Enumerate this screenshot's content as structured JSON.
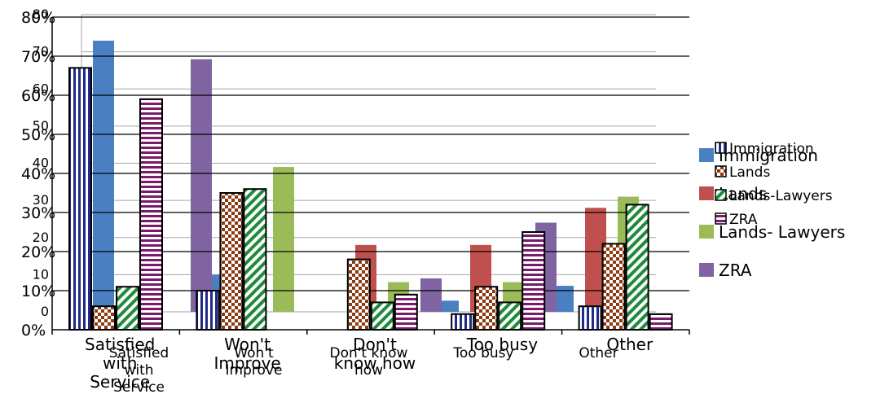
{
  "chart_data": {
    "type": "bar",
    "description": "Two overlapping clustered bar charts with the same categories and series.",
    "categories": [
      "Satisfied with Service",
      "Won't Improve",
      "Don't know how",
      "Too busy",
      "Other"
    ],
    "front": {
      "y_tick_labels": [
        "0%",
        "10%",
        "20%",
        "30%",
        "40%",
        "50%",
        "60%",
        "70%",
        "80%"
      ],
      "ylim": [
        0,
        80
      ],
      "category_labels": [
        [
          "Satisfied",
          "with",
          "Service"
        ],
        [
          "Won't",
          "Improve"
        ],
        [
          "Don't",
          "know how"
        ],
        [
          "Too busy"
        ],
        [
          "Other"
        ]
      ],
      "series": [
        {
          "name": "Immigration",
          "values": [
            67,
            10,
            0,
            4,
            6
          ],
          "color": "#1f2a8a",
          "pattern": "vertical-stripes"
        },
        {
          "name": "Lands",
          "values": [
            6,
            35,
            18,
            11,
            22
          ],
          "color": "#8b3a12",
          "pattern": "checker"
        },
        {
          "name": "Lands-Lawyers",
          "values": [
            11,
            36,
            7,
            7,
            32
          ],
          "color": "#1e8a3a",
          "pattern": "diagonal-stripes"
        },
        {
          "name": "ZRA",
          "values": [
            59,
            0,
            9,
            25,
            4
          ],
          "color": "#7a1a6a",
          "pattern": "horizontal-stripes"
        }
      ]
    },
    "back": {
      "y_tick_labels": [
        "0",
        "10",
        "20",
        "30",
        "40",
        "50",
        "60",
        "70",
        "80"
      ],
      "ylim": [
        0,
        80
      ],
      "category_labels": [
        [
          "Satisfied",
          "with",
          "Service"
        ],
        [
          "Won't",
          "Improve"
        ],
        [
          "Don't know",
          "how"
        ],
        [
          "Too busy"
        ],
        [
          "Other"
        ]
      ],
      "series": [
        {
          "name": "Immigration",
          "values": [
            73,
            10,
            0,
            3,
            7
          ],
          "color": "#4a7fc1"
        },
        {
          "name": "Lands",
          "values": [
            0,
            31,
            18,
            18,
            28
          ],
          "color": "#c0504d"
        },
        {
          "name": "Lands- Lawyers",
          "values": [
            0,
            39,
            8,
            8,
            31
          ],
          "color": "#9bbb59"
        },
        {
          "name": "ZRA",
          "values": [
            68,
            0,
            9,
            24,
            0
          ],
          "color": "#8064a2"
        }
      ]
    }
  }
}
